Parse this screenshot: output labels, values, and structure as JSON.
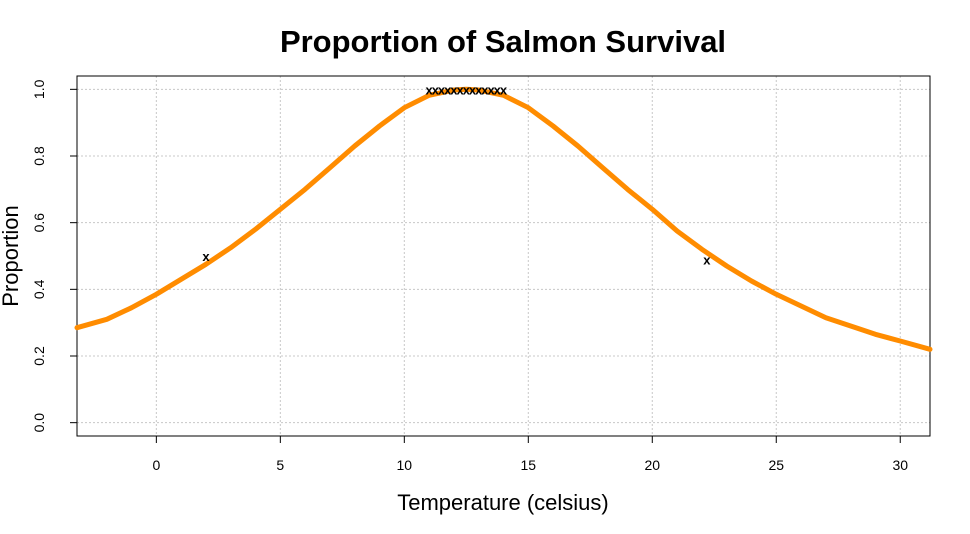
{
  "chart_data": {
    "type": "line",
    "title": "Proportion of Salmon Survival",
    "xlabel": "Temperature (celsius)",
    "ylabel": "Proportion",
    "xlim": [
      -3.2,
      31.2
    ],
    "ylim": [
      -0.04,
      1.04
    ],
    "x_ticks": [
      0,
      5,
      10,
      15,
      20,
      25,
      30
    ],
    "y_ticks": [
      0.0,
      0.2,
      0.4,
      0.6,
      0.8,
      1.0
    ],
    "x_tick_labels": [
      "0",
      "5",
      "10",
      "15",
      "20",
      "25",
      "30"
    ],
    "y_tick_labels": [
      "0.0",
      "0.2",
      "0.4",
      "0.6",
      "0.8",
      "1.0"
    ],
    "grid": true,
    "grid_color": "#c8c8c8",
    "series": [
      {
        "type": "line",
        "color": "#ff8c00",
        "x": [
          -3.2,
          -2,
          -1,
          0,
          1,
          2,
          3,
          4,
          5,
          6,
          7,
          8,
          9,
          10,
          11,
          12,
          12.5,
          13,
          14,
          15,
          16,
          17,
          18,
          19,
          20,
          21,
          22,
          23,
          24,
          25,
          26,
          27,
          28,
          29,
          30,
          31.2
        ],
        "y": [
          0.285,
          0.31,
          0.345,
          0.385,
          0.43,
          0.475,
          0.525,
          0.58,
          0.64,
          0.7,
          0.765,
          0.83,
          0.89,
          0.945,
          0.982,
          0.998,
          1.0,
          0.998,
          0.982,
          0.945,
          0.89,
          0.83,
          0.765,
          0.7,
          0.64,
          0.575,
          0.52,
          0.47,
          0.425,
          0.385,
          0.35,
          0.315,
          0.29,
          0.265,
          0.245,
          0.22
        ]
      },
      {
        "type": "scatter",
        "marker": "x",
        "color": "#000000",
        "x": [
          2,
          11,
          11.25,
          11.5,
          11.75,
          12,
          12.25,
          12.5,
          12.75,
          13,
          13.25,
          13.5,
          13.75,
          14,
          22.2
        ],
        "y": [
          0.5,
          1.0,
          1.0,
          1.0,
          1.0,
          1.0,
          1.0,
          1.0,
          1.0,
          1.0,
          1.0,
          1.0,
          1.0,
          1.0,
          0.49
        ]
      }
    ]
  }
}
